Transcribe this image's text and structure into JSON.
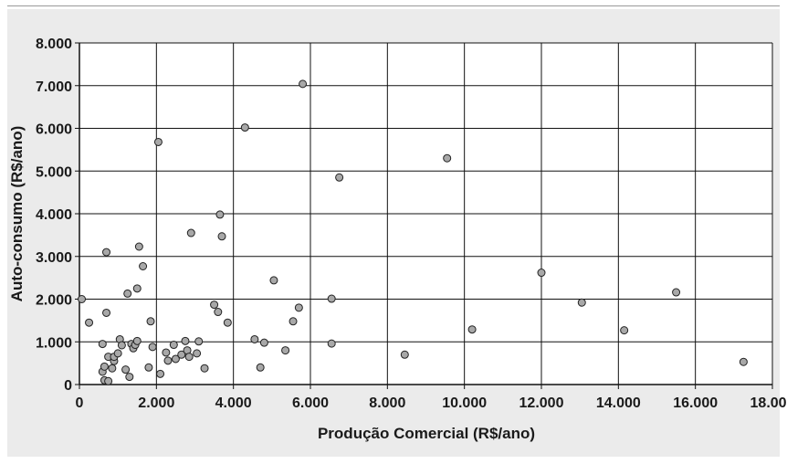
{
  "chart_data": {
    "type": "scatter",
    "title": "",
    "xlabel": "Produção Comercial (R$/ano)",
    "ylabel": "Auto-consumo (R$/ano)",
    "xlim": [
      0,
      18000
    ],
    "ylim": [
      0,
      8000
    ],
    "x_ticks": [
      0,
      2000,
      4000,
      6000,
      8000,
      10000,
      12000,
      14000,
      16000,
      18000
    ],
    "y_ticks": [
      0,
      1000,
      2000,
      3000,
      4000,
      5000,
      6000,
      7000,
      8000
    ],
    "x_tick_labels": [
      "0",
      "2.000",
      "4.000",
      "6.000",
      "8.000",
      "10.000",
      "12.000",
      "14.000",
      "16.000",
      "18.000"
    ],
    "y_tick_labels": [
      "0",
      "1.000",
      "2.000",
      "3.000",
      "4.000",
      "5.000",
      "6.000",
      "7.000",
      "8.000"
    ],
    "grid": true,
    "legend": "none",
    "colors": {
      "marker_fill": "#a8a8a8",
      "marker_stroke": "#222222",
      "background": "#ebebeb",
      "plot_area": "#ffffff"
    },
    "points": [
      {
        "x": 60,
        "y": 2000
      },
      {
        "x": 250,
        "y": 1450
      },
      {
        "x": 600,
        "y": 950
      },
      {
        "x": 600,
        "y": 300
      },
      {
        "x": 650,
        "y": 420
      },
      {
        "x": 650,
        "y": 100
      },
      {
        "x": 700,
        "y": 3100
      },
      {
        "x": 700,
        "y": 1680
      },
      {
        "x": 750,
        "y": 650
      },
      {
        "x": 750,
        "y": 80
      },
      {
        "x": 850,
        "y": 380
      },
      {
        "x": 900,
        "y": 550
      },
      {
        "x": 900,
        "y": 650
      },
      {
        "x": 1000,
        "y": 730
      },
      {
        "x": 1050,
        "y": 1060
      },
      {
        "x": 1100,
        "y": 920
      },
      {
        "x": 1200,
        "y": 350
      },
      {
        "x": 1250,
        "y": 2130
      },
      {
        "x": 1300,
        "y": 180
      },
      {
        "x": 1350,
        "y": 950
      },
      {
        "x": 1400,
        "y": 850
      },
      {
        "x": 1450,
        "y": 930
      },
      {
        "x": 1500,
        "y": 1020
      },
      {
        "x": 1500,
        "y": 2250
      },
      {
        "x": 1550,
        "y": 3230
      },
      {
        "x": 1650,
        "y": 2770
      },
      {
        "x": 1800,
        "y": 400
      },
      {
        "x": 1850,
        "y": 1480
      },
      {
        "x": 1900,
        "y": 880
      },
      {
        "x": 2050,
        "y": 5680
      },
      {
        "x": 2100,
        "y": 250
      },
      {
        "x": 2250,
        "y": 750
      },
      {
        "x": 2300,
        "y": 560
      },
      {
        "x": 2450,
        "y": 930
      },
      {
        "x": 2500,
        "y": 600
      },
      {
        "x": 2650,
        "y": 700
      },
      {
        "x": 2750,
        "y": 1020
      },
      {
        "x": 2800,
        "y": 800
      },
      {
        "x": 2850,
        "y": 650
      },
      {
        "x": 2900,
        "y": 3550
      },
      {
        "x": 3050,
        "y": 730
      },
      {
        "x": 3100,
        "y": 1010
      },
      {
        "x": 3250,
        "y": 380
      },
      {
        "x": 3500,
        "y": 1870
      },
      {
        "x": 3600,
        "y": 1700
      },
      {
        "x": 3650,
        "y": 3980
      },
      {
        "x": 3700,
        "y": 3470
      },
      {
        "x": 3850,
        "y": 1450
      },
      {
        "x": 4300,
        "y": 6020
      },
      {
        "x": 4550,
        "y": 1060
      },
      {
        "x": 4700,
        "y": 400
      },
      {
        "x": 4800,
        "y": 980
      },
      {
        "x": 5050,
        "y": 2440
      },
      {
        "x": 5350,
        "y": 800
      },
      {
        "x": 5550,
        "y": 1480
      },
      {
        "x": 5700,
        "y": 1800
      },
      {
        "x": 5800,
        "y": 7040
      },
      {
        "x": 6550,
        "y": 2010
      },
      {
        "x": 6550,
        "y": 960
      },
      {
        "x": 6750,
        "y": 4850
      },
      {
        "x": 8450,
        "y": 700
      },
      {
        "x": 9550,
        "y": 5300
      },
      {
        "x": 10200,
        "y": 1290
      },
      {
        "x": 12000,
        "y": 2620
      },
      {
        "x": 13050,
        "y": 1920
      },
      {
        "x": 14150,
        "y": 1270
      },
      {
        "x": 15500,
        "y": 2160
      },
      {
        "x": 17250,
        "y": 530
      }
    ]
  }
}
